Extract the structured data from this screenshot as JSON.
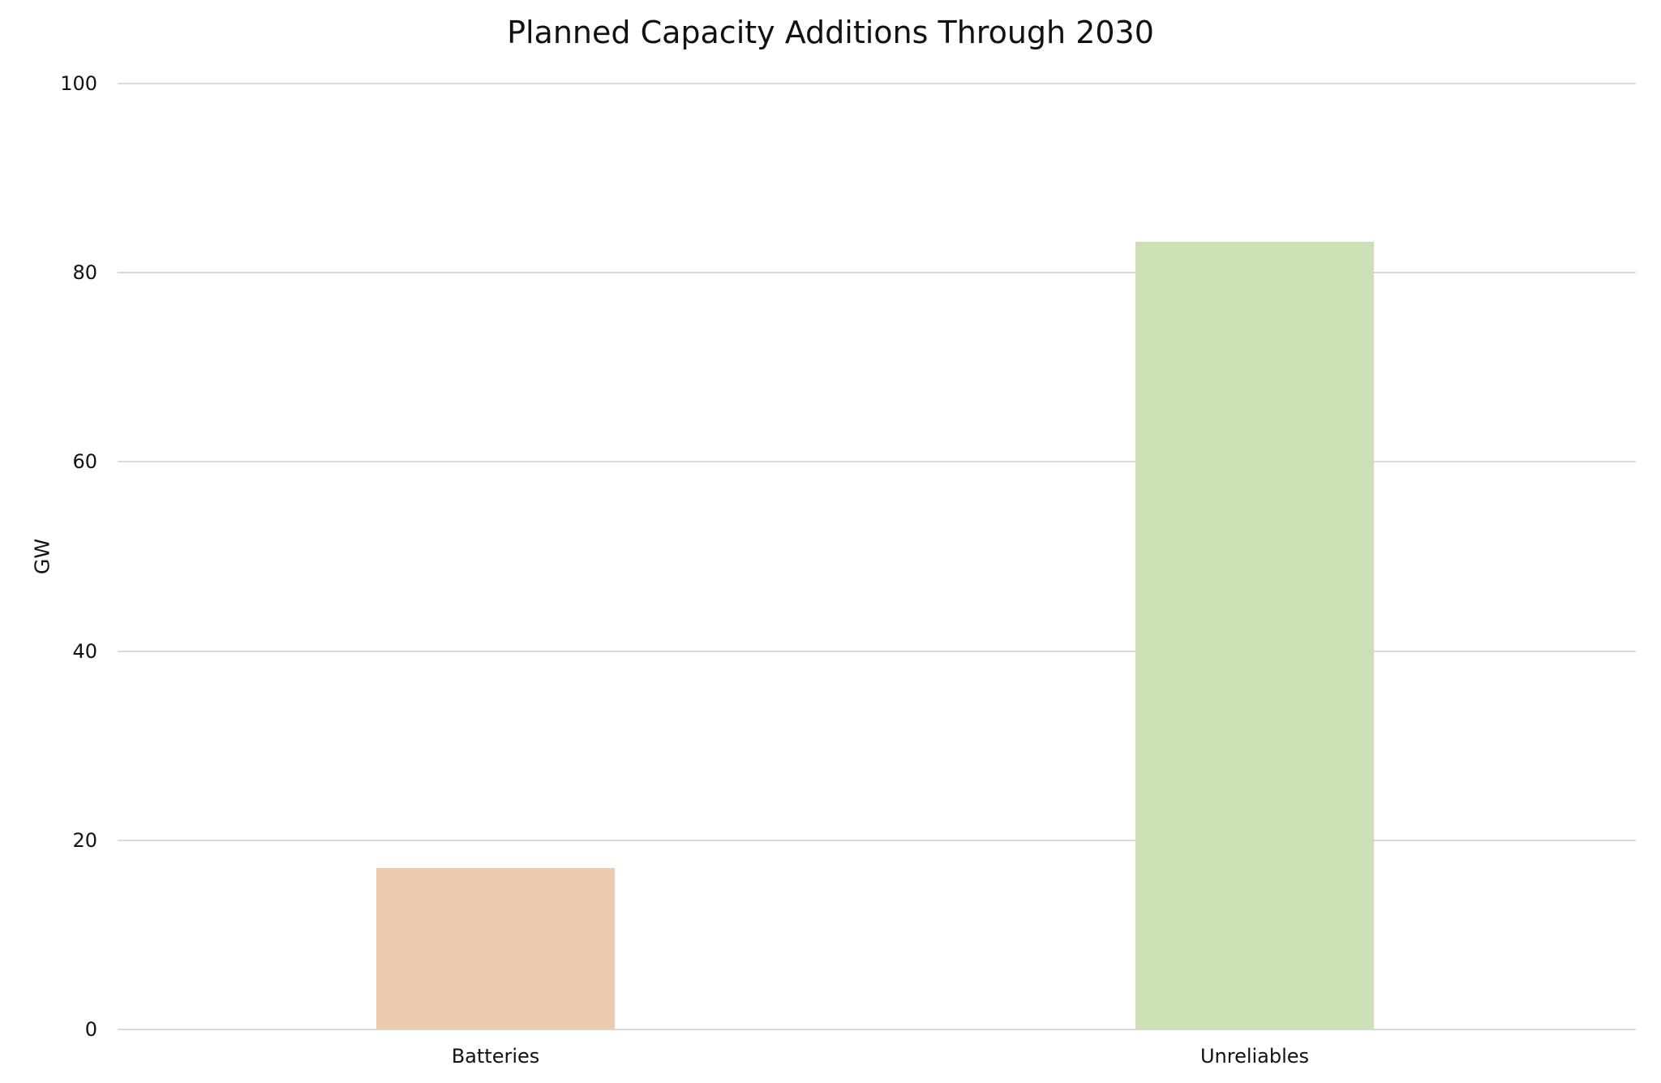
{
  "chart_data": {
    "type": "bar",
    "title": "Planned Capacity Additions Through 2030",
    "xlabel": "",
    "ylabel": "GW",
    "categories": [
      "Batteries",
      "Unreliables"
    ],
    "values": [
      17.1,
      83.3
    ],
    "colors": [
      "#ebcaae",
      "#cddfb5"
    ],
    "ylim": [
      0,
      100
    ],
    "yticks": [
      0,
      20,
      40,
      60,
      80,
      100
    ],
    "ytick_labels": [
      "0",
      "20",
      "40",
      "60",
      "80",
      "100"
    ],
    "grid": true,
    "legend": null
  }
}
